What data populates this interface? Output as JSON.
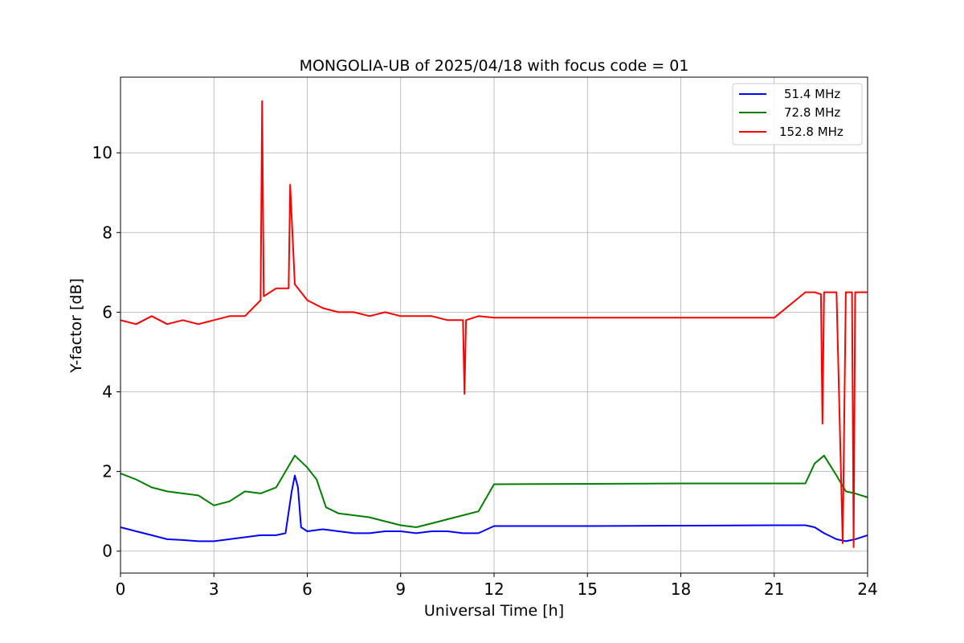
{
  "chart_data": {
    "type": "line",
    "title": "MONGOLIA-UB of 2025/04/18 with focus code = 01",
    "xlabel": "Universal Time [h]",
    "ylabel": "Y-factor [dB]",
    "xlim": [
      0,
      24
    ],
    "ylim": [
      -0.55,
      11.9
    ],
    "xticks": [
      0,
      3,
      6,
      9,
      12,
      15,
      18,
      21,
      24
    ],
    "xtick_labels": [
      "0",
      "3",
      "6",
      "9",
      "12",
      "15",
      "18",
      "21",
      "24"
    ],
    "yticks": [
      0,
      2,
      4,
      6,
      8,
      10
    ],
    "ytick_labels": [
      "0",
      "2",
      "4",
      "6",
      "8",
      "10"
    ],
    "grid": true,
    "legend_position": "top-right",
    "series": [
      {
        "name": "51.4 MHz",
        "color": "#0000ff",
        "x": [
          0,
          0.5,
          1,
          1.5,
          2,
          2.5,
          3,
          3.5,
          4,
          4.5,
          5,
          5.3,
          5.5,
          5.6,
          5.7,
          5.8,
          6,
          6.5,
          7,
          7.5,
          8,
          8.5,
          9,
          9.5,
          10,
          10.5,
          11,
          11.5,
          12,
          15,
          18,
          21,
          22,
          22.3,
          22.6,
          23,
          23.3,
          23.6,
          24
        ],
        "y": [
          0.6,
          0.5,
          0.4,
          0.3,
          0.28,
          0.25,
          0.25,
          0.3,
          0.35,
          0.4,
          0.4,
          0.45,
          1.5,
          1.9,
          1.6,
          0.6,
          0.5,
          0.55,
          0.5,
          0.45,
          0.45,
          0.5,
          0.5,
          0.45,
          0.5,
          0.5,
          0.45,
          0.45,
          0.63,
          0.63,
          0.64,
          0.65,
          0.65,
          0.6,
          0.45,
          0.3,
          0.25,
          0.3,
          0.4
        ]
      },
      {
        "name": "72.8 MHz",
        "color": "#008000",
        "x": [
          0,
          0.5,
          1,
          1.5,
          2,
          2.5,
          3,
          3.5,
          4,
          4.5,
          5,
          5.3,
          5.6,
          6,
          6.3,
          6.6,
          7,
          7.5,
          8,
          8.5,
          9,
          9.5,
          10,
          10.5,
          11,
          11.5,
          12,
          15,
          18,
          21,
          22,
          22.3,
          22.6,
          23,
          23.3,
          23.6,
          24
        ],
        "y": [
          1.95,
          1.8,
          1.6,
          1.5,
          1.45,
          1.4,
          1.15,
          1.25,
          1.5,
          1.45,
          1.6,
          2.0,
          2.4,
          2.1,
          1.8,
          1.1,
          0.95,
          0.9,
          0.85,
          0.75,
          0.65,
          0.6,
          0.7,
          0.8,
          0.9,
          1.0,
          1.68,
          1.69,
          1.7,
          1.7,
          1.7,
          2.2,
          2.4,
          1.9,
          1.5,
          1.45,
          1.35
        ]
      },
      {
        "name": "152.8 MHz",
        "color": "#ff0000",
        "x": [
          0,
          0.5,
          1,
          1.5,
          2,
          2.5,
          3,
          3.5,
          4,
          4.5,
          4.55,
          4.6,
          5,
          5.4,
          5.45,
          5.6,
          6,
          6.5,
          7,
          7.5,
          8,
          8.5,
          9,
          9.5,
          10,
          10.5,
          11,
          11.05,
          11.1,
          11.5,
          12,
          15,
          18,
          21,
          22,
          22.3,
          22.5,
          22.55,
          22.6,
          23,
          23.2,
          23.3,
          23.5,
          23.55,
          23.6,
          24
        ],
        "y": [
          5.8,
          5.7,
          5.9,
          5.7,
          5.8,
          5.7,
          5.8,
          5.9,
          5.9,
          6.3,
          11.3,
          6.4,
          6.6,
          6.6,
          9.2,
          6.7,
          6.3,
          6.1,
          6.0,
          6.0,
          5.9,
          6.0,
          5.9,
          5.9,
          5.9,
          5.8,
          5.8,
          3.95,
          5.8,
          5.9,
          5.86,
          5.86,
          5.86,
          5.86,
          6.5,
          6.5,
          6.45,
          3.2,
          6.5,
          6.5,
          0.2,
          6.5,
          6.5,
          0.1,
          6.5,
          6.5
        ]
      }
    ]
  }
}
